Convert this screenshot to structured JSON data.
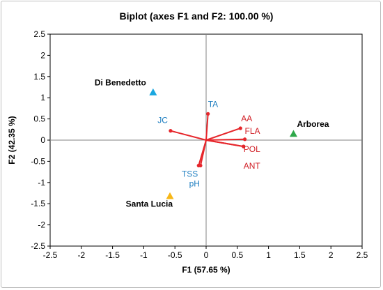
{
  "chart_data": {
    "type": "scatter",
    "title": "Biplot (axes F1 and F2: 100.00 %)",
    "xlabel": "F1 (57.65 %)",
    "ylabel": "F2 (42.35 %)",
    "xlim": [
      -2.5,
      2.5
    ],
    "ylim": [
      -2.5,
      2.5
    ],
    "xticks": [
      "-2.5",
      "-2",
      "-1.5",
      "-1",
      "-0.5",
      "0",
      "0.5",
      "1",
      "1.5",
      "2",
      "2.5"
    ],
    "yticks": [
      "2.5",
      "2",
      "1.5",
      "1",
      "0.5",
      "0",
      "-0.5",
      "-1",
      "-1.5",
      "-2",
      "-2.5"
    ],
    "grid": false,
    "observations": [
      {
        "label": "Di Benedetto",
        "x": -0.85,
        "y": 1.13,
        "color": "#1aa7e0"
      },
      {
        "label": "Arborea",
        "x": 1.4,
        "y": 0.15,
        "color": "#2ea84a"
      },
      {
        "label": "Santa Lucia",
        "x": -0.58,
        "y": -1.32,
        "color": "#f7b718"
      }
    ],
    "variables": [
      {
        "label": "TA",
        "x": 0.03,
        "y": 0.62,
        "color": "#1f7fc1"
      },
      {
        "label": "JC",
        "x": -0.57,
        "y": 0.22,
        "color": "#1f7fc1"
      },
      {
        "label": "AA",
        "x": 0.55,
        "y": 0.28,
        "color": "#d11f26"
      },
      {
        "label": "FLA",
        "x": 0.62,
        "y": 0.02,
        "color": "#d11f26"
      },
      {
        "label": "POL",
        "x": 0.6,
        "y": -0.15,
        "color": "#d11f26"
      },
      {
        "label": "ANT",
        "x": 0.6,
        "y": -0.15,
        "color": "#d11f26"
      },
      {
        "label": "TSS",
        "x": -0.12,
        "y": -0.6,
        "color": "#1f7fc1"
      },
      {
        "label": "pH",
        "x": -0.09,
        "y": -0.6,
        "color": "#1f7fc1"
      }
    ],
    "arrow_color": "#e6262b"
  }
}
